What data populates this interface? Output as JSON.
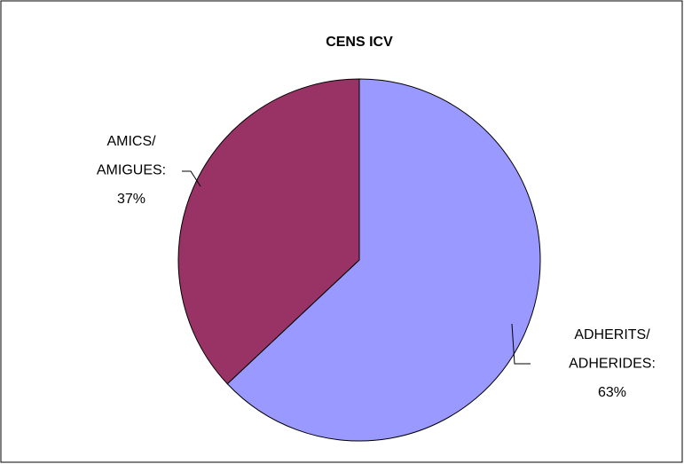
{
  "chart_data": {
    "type": "pie",
    "title": "CENS ICV",
    "categories": [
      [
        "ADHERITS/",
        "ADHERIDES:"
      ],
      [
        "AMICS/",
        "AMIGUES:"
      ]
    ],
    "values": [
      63,
      37
    ],
    "value_labels": [
      "63%",
      "37%"
    ],
    "colors": [
      "#9999ff",
      "#993366"
    ]
  }
}
